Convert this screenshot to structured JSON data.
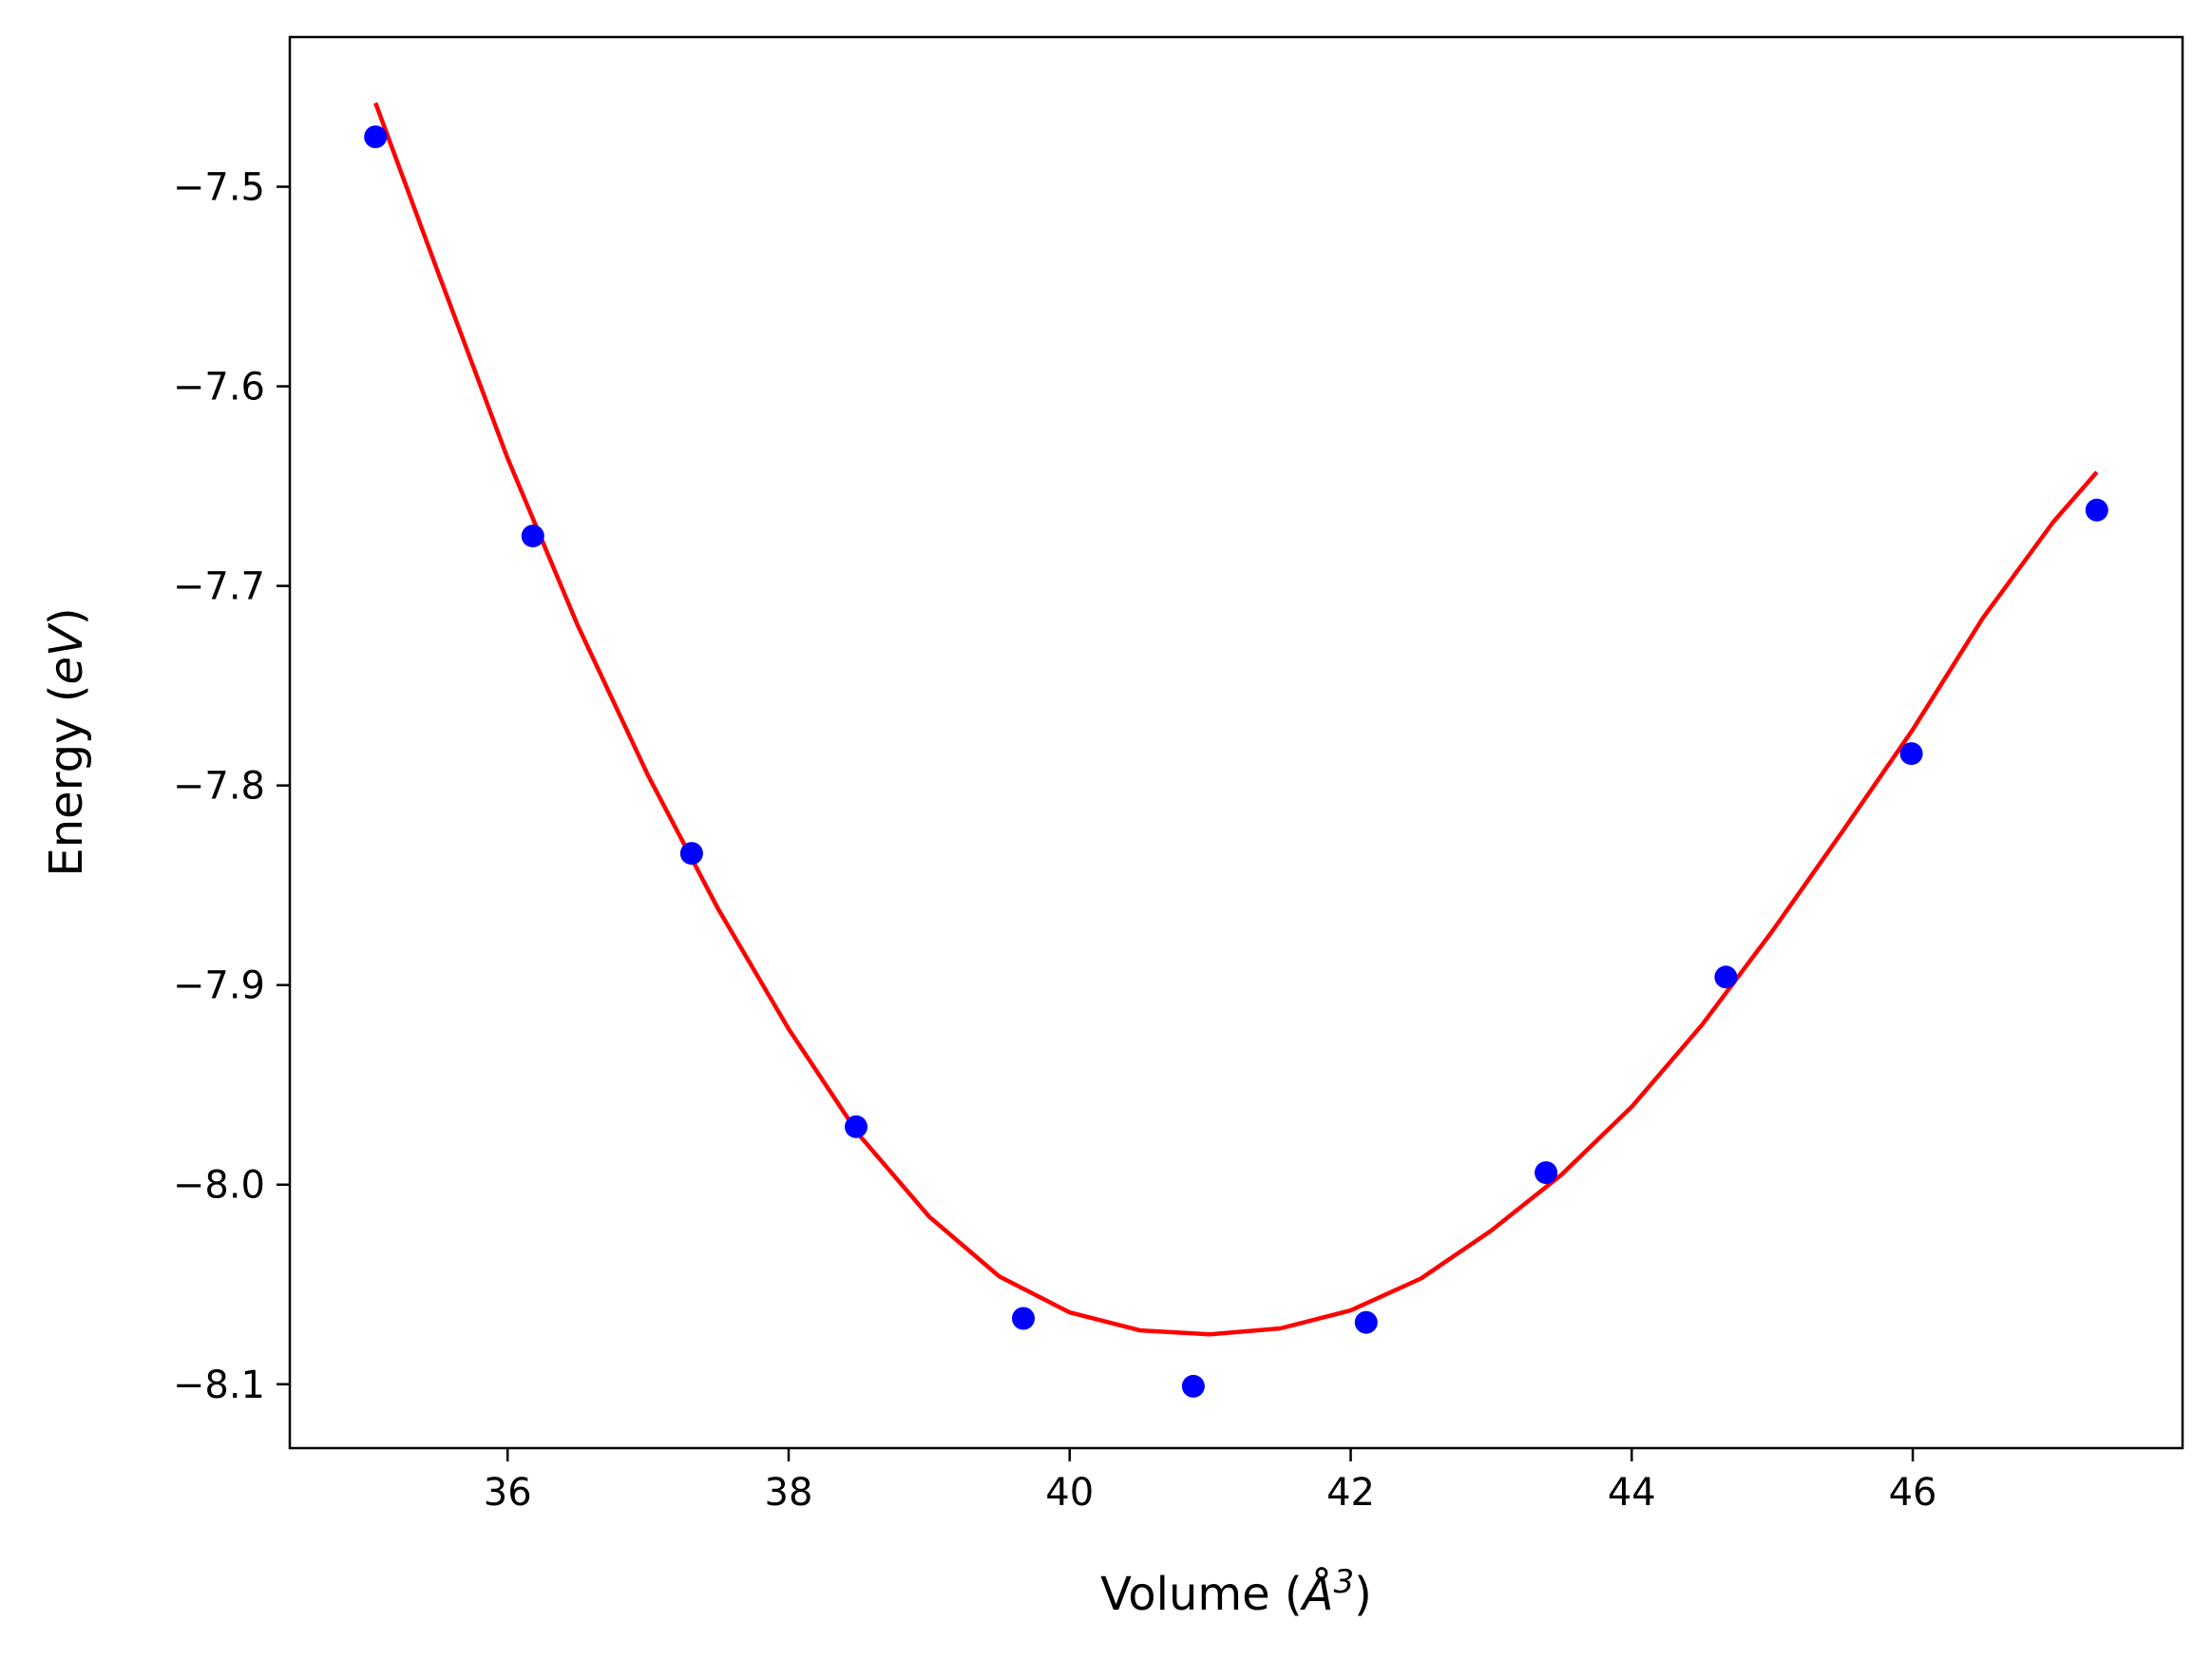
{
  "chart_data": {
    "type": "scatter",
    "title": "",
    "xlabel": {
      "prefix": "Volume (",
      "unit_symbol": "Å",
      "unit_power": "3",
      "suffix": ")"
    },
    "ylabel": {
      "prefix": "Energy (",
      "unit": "eV",
      "suffix": ")"
    },
    "xlim": [
      34.45,
      47.92
    ],
    "ylim": [
      -8.132,
      -7.425
    ],
    "x_ticks": [
      36,
      38,
      40,
      42,
      44,
      46
    ],
    "y_ticks": [
      -8.1,
      -8.0,
      -7.9,
      -7.8,
      -7.7,
      -7.6,
      -7.5
    ],
    "x_tick_labels": [
      "36",
      "38",
      "40",
      "42",
      "44",
      "46"
    ],
    "y_tick_labels": [
      "−8.1",
      "−8.0",
      "−7.9",
      "−7.8",
      "−7.7",
      "−7.6",
      "−7.5"
    ],
    "grid": false,
    "series": [
      {
        "kind": "points",
        "color": "#0000ff",
        "x": [
          35.06,
          36.18,
          37.31,
          38.48,
          39.67,
          40.88,
          42.11,
          43.39,
          44.67,
          45.99,
          47.31
        ],
        "y": [
          -7.475,
          -7.675,
          -7.834,
          -7.971,
          -8.067,
          -8.101,
          -8.069,
          -7.994,
          -7.896,
          -7.784,
          -7.662
        ]
      },
      {
        "kind": "fit-line",
        "color": "#ff0000",
        "x": [
          35.06,
          35.5,
          36.0,
          36.5,
          37.0,
          37.5,
          38.0,
          38.5,
          39.0,
          39.5,
          40.0,
          40.5,
          41.0,
          41.5,
          42.0,
          42.5,
          43.0,
          43.5,
          44.0,
          44.5,
          45.0,
          45.5,
          46.0,
          46.5,
          47.0,
          47.31
        ],
        "y": [
          -7.458,
          -7.542,
          -7.636,
          -7.72,
          -7.795,
          -7.862,
          -7.922,
          -7.975,
          -8.016,
          -8.046,
          -8.064,
          -8.073,
          -8.075,
          -8.072,
          -8.063,
          -8.047,
          -8.023,
          -7.995,
          -7.961,
          -7.92,
          -7.873,
          -7.823,
          -7.772,
          -7.716,
          -7.668,
          -7.643
        ]
      }
    ]
  }
}
